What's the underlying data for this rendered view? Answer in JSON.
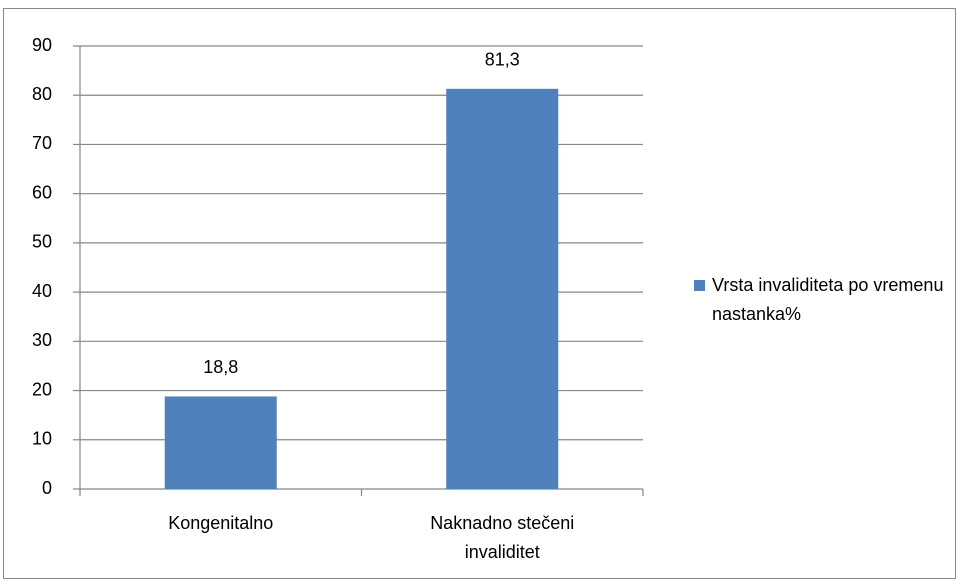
{
  "chart_data": {
    "type": "bar",
    "categories": [
      "Kongenitalno",
      "Naknadno stečeni invaliditet"
    ],
    "series": [
      {
        "name": "Vrsta invaliditeta po vremenu nastanka%",
        "color": "#4f81bd",
        "values": [
          18.8,
          81.3
        ],
        "value_labels": [
          "18,8",
          "81,3"
        ]
      }
    ],
    "ylim": [
      0,
      90
    ],
    "yticks": [
      0,
      10,
      20,
      30,
      40,
      50,
      60,
      70,
      80,
      90
    ],
    "grid": true,
    "legend": "right"
  }
}
